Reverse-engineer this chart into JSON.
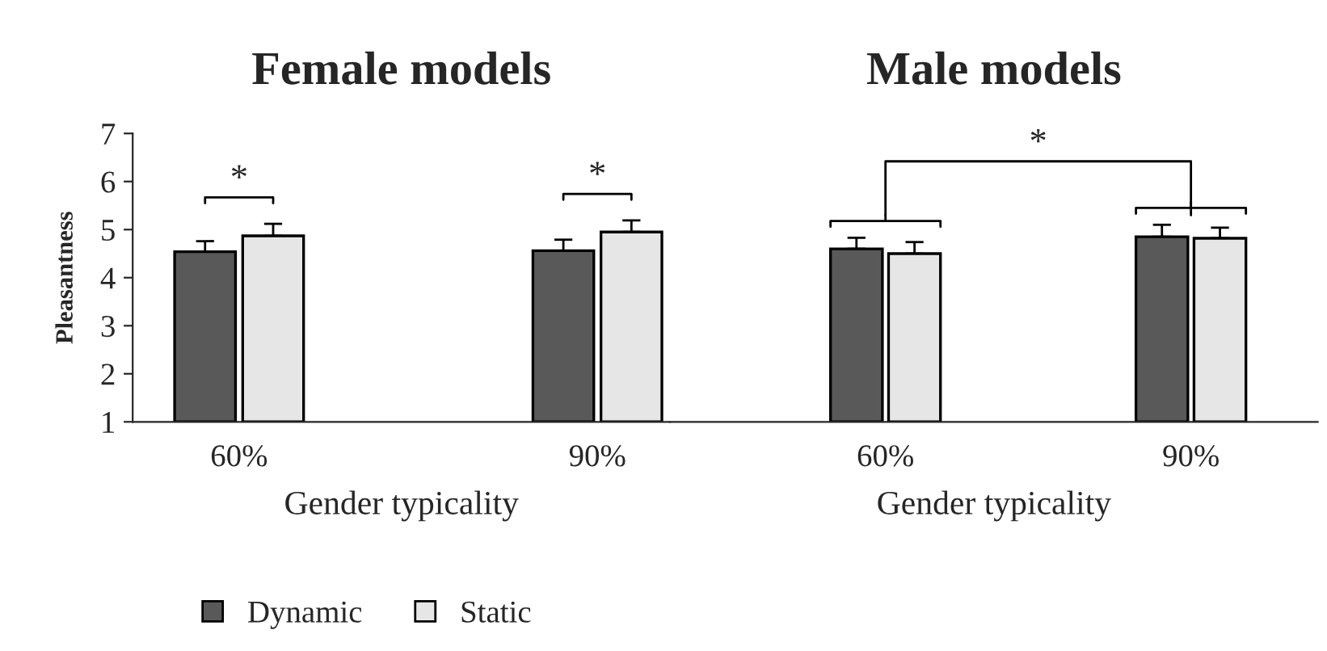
{
  "chart_data": [
    {
      "type": "bar",
      "title": "Female models",
      "xlabel": "Gender typicality",
      "ylabel": "Pleasantness",
      "categories": [
        "60%",
        "90%"
      ],
      "ylim": [
        1,
        7
      ],
      "yticks": [
        1,
        2,
        3,
        4,
        5,
        6,
        7
      ],
      "grid": false,
      "legend": "bottom left",
      "series": [
        {
          "name": "Dynamic",
          "color": "#595959",
          "values": [
            4.54,
            4.56
          ],
          "errors": [
            0.22,
            0.23
          ]
        },
        {
          "name": "Static",
          "color": "#e6e6e6",
          "values": [
            4.87,
            4.95
          ],
          "errors": [
            0.25,
            0.24
          ]
        }
      ],
      "annotations": [
        "*",
        "*"
      ]
    },
    {
      "type": "bar",
      "title": "Male models",
      "xlabel": "Gender typicality",
      "categories": [
        "60%",
        "90%"
      ],
      "ylim": [
        1,
        7
      ],
      "tick_labels": "x",
      "grid": false,
      "series": [
        {
          "color": "#595959",
          "values": [
            4.6,
            4.85
          ],
          "errors": [
            0.23,
            0.25
          ]
        },
        {
          "color": "#e6e6e6",
          "values": [
            4.5,
            4.82
          ],
          "errors": [
            0.24,
            0.22
          ]
        }
      ],
      "annotations": [
        "*"
      ]
    }
  ]
}
